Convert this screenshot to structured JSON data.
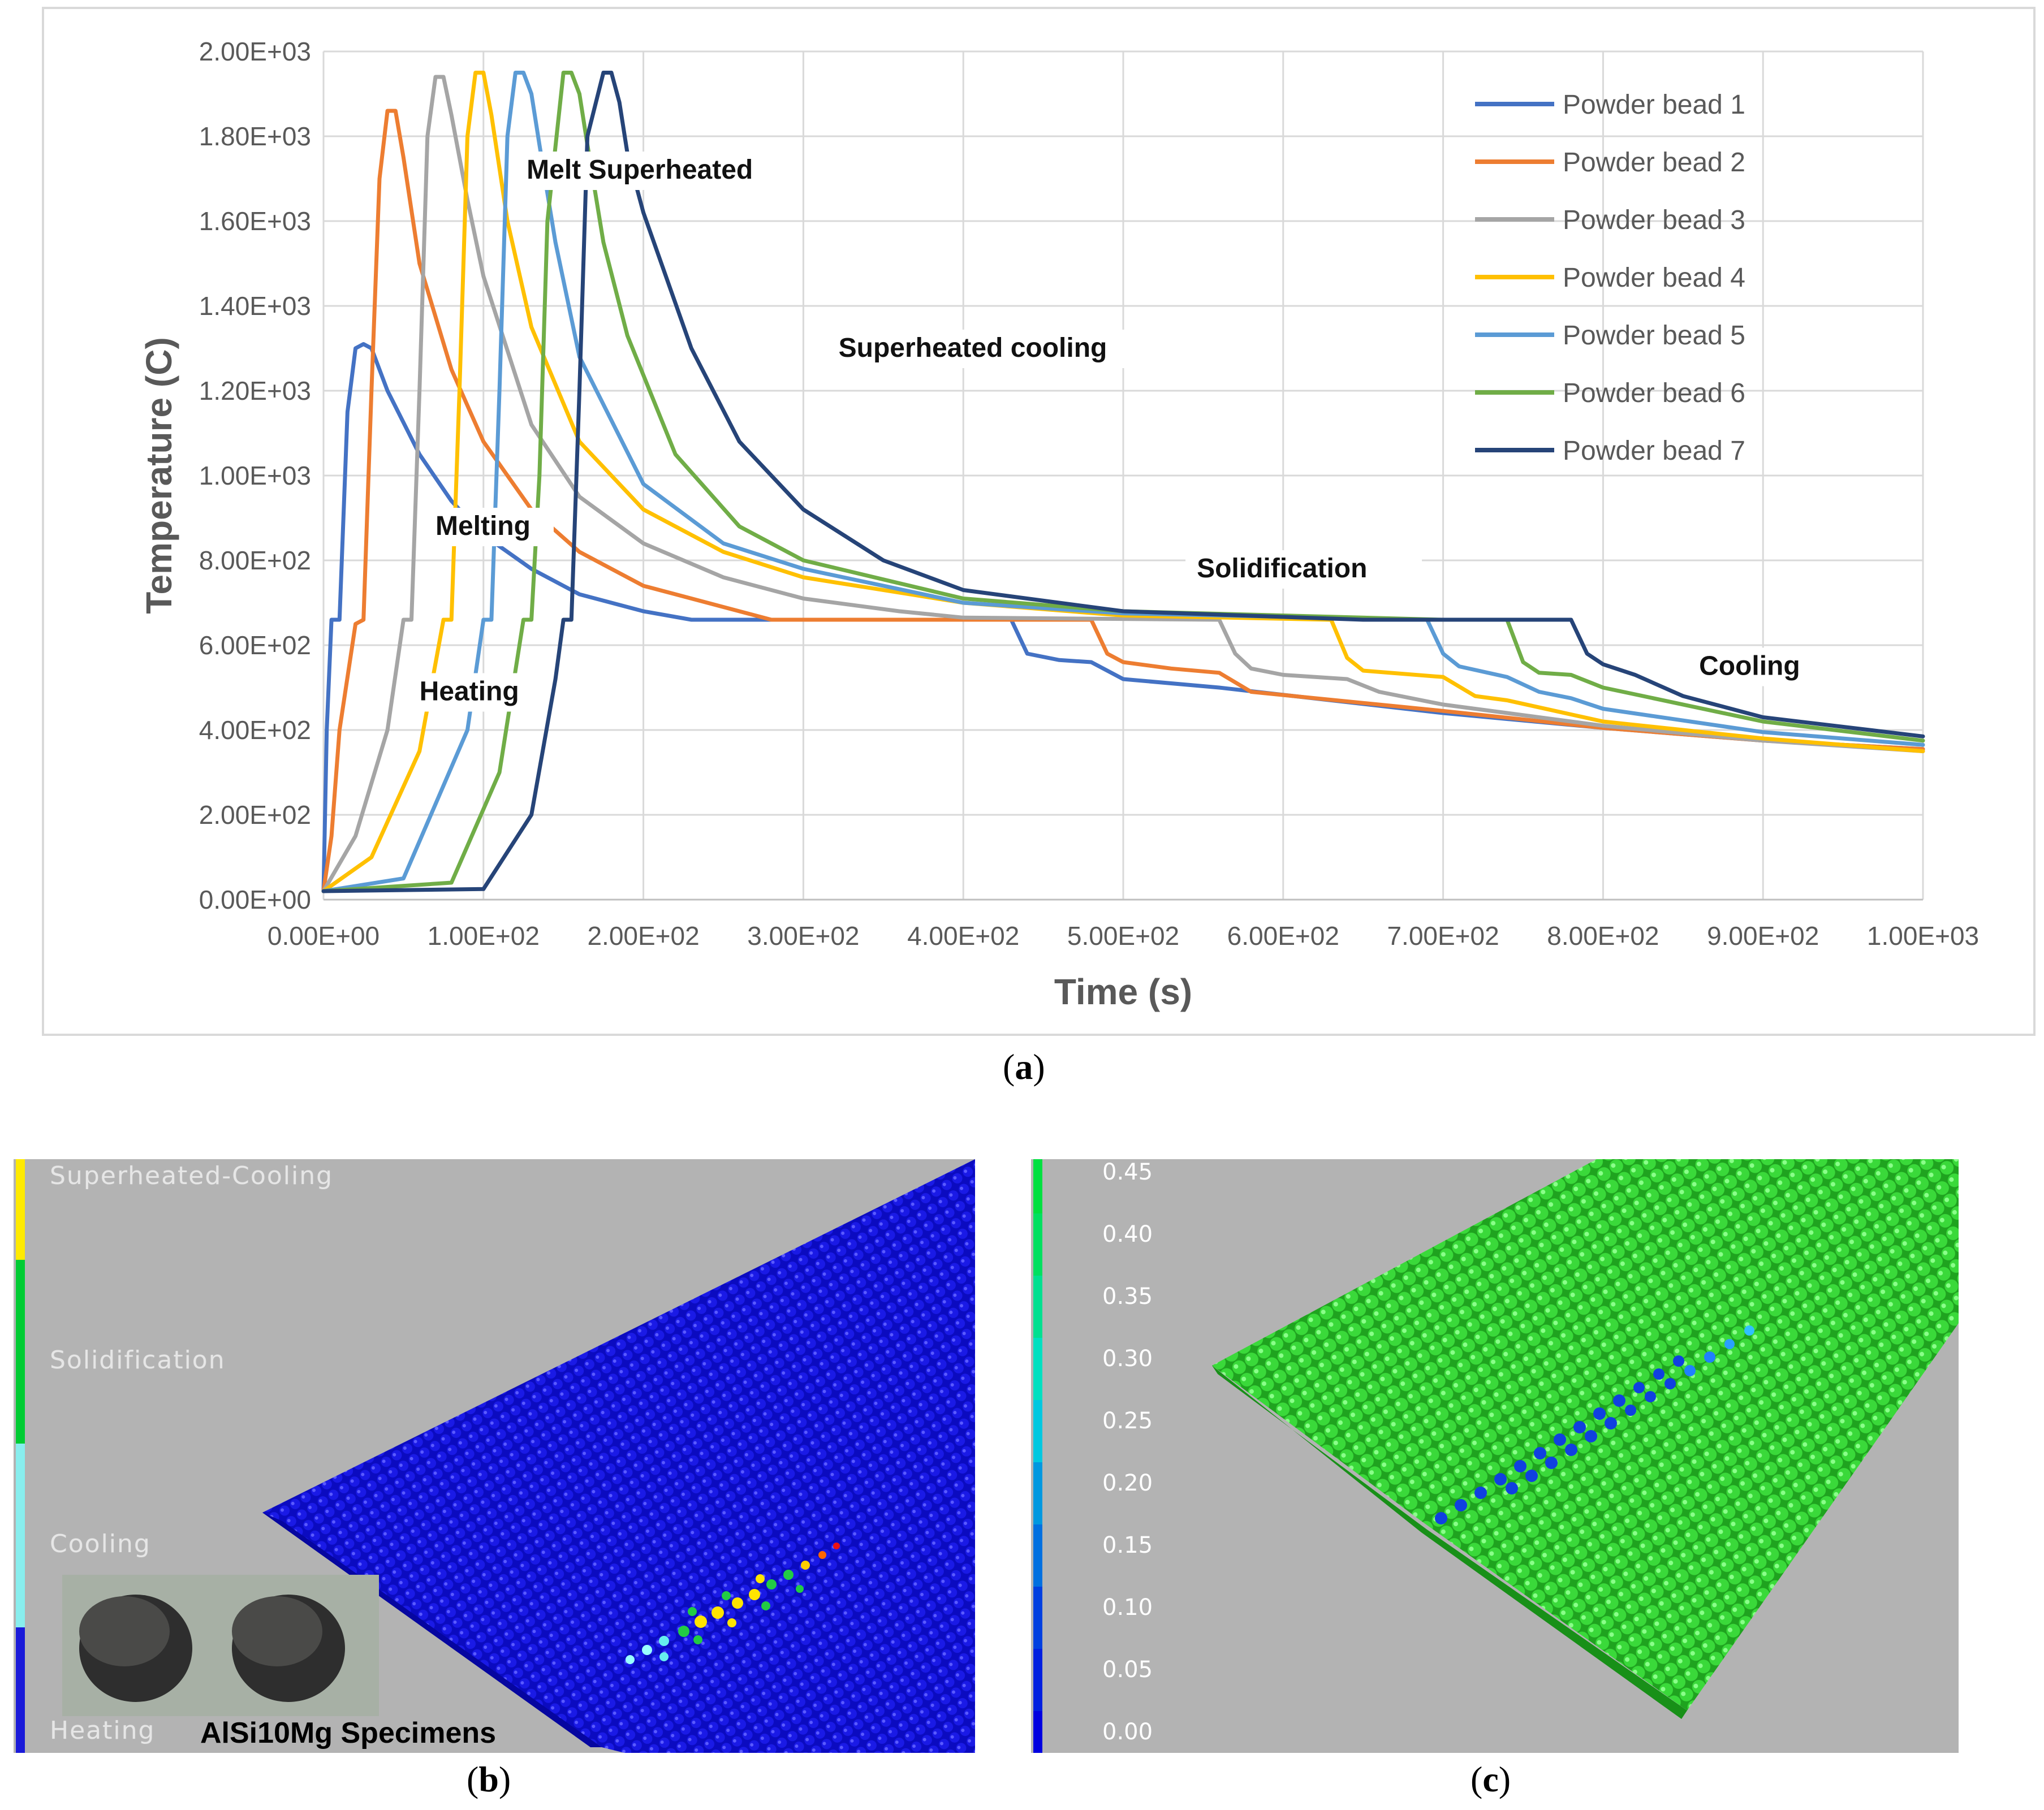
{
  "chart_data": {
    "type": "line",
    "xlabel": "Time (s)",
    "ylabel": "Temperature (C)",
    "xlim": [
      0,
      1000
    ],
    "ylim": [
      0,
      2000
    ],
    "xticks": [
      0,
      100,
      200,
      300,
      400,
      500,
      600,
      700,
      800,
      900,
      1000
    ],
    "yticks": [
      0,
      200,
      400,
      600,
      800,
      1000,
      1200,
      1400,
      1600,
      1800,
      2000
    ],
    "xtick_labels": [
      "0.00E+00",
      "1.00E+02",
      "2.00E+02",
      "3.00E+02",
      "4.00E+02",
      "5.00E+02",
      "6.00E+02",
      "7.00E+02",
      "8.00E+02",
      "9.00E+02",
      "1.00E+03"
    ],
    "ytick_labels": [
      "0.00E+00",
      "2.00E+02",
      "4.00E+02",
      "6.00E+02",
      "8.00E+02",
      "1.00E+03",
      "1.20E+03",
      "1.40E+03",
      "1.60E+03",
      "1.80E+03",
      "2.00E+03"
    ],
    "grid": true,
    "legend_position": "top-right",
    "series": [
      {
        "name": "Powder bead 1",
        "color": "#4472c4",
        "x": [
          0,
          2,
          5,
          10,
          15,
          20,
          25,
          30,
          40,
          60,
          80,
          100,
          130,
          160,
          200,
          230,
          300,
          400,
          430,
          440,
          460,
          480,
          500,
          560,
          700,
          800,
          900,
          1000
        ],
        "y": [
          20,
          400,
          660,
          660,
          1150,
          1300,
          1310,
          1300,
          1200,
          1050,
          940,
          860,
          780,
          720,
          680,
          660,
          660,
          660,
          660,
          580,
          565,
          560,
          520,
          500,
          440,
          405,
          375,
          355
        ]
      },
      {
        "name": "Powder bead 2",
        "color": "#ed7d31",
        "x": [
          0,
          5,
          10,
          20,
          25,
          30,
          35,
          40,
          45,
          50,
          60,
          80,
          100,
          130,
          160,
          200,
          250,
          280,
          300,
          400,
          480,
          490,
          500,
          530,
          560,
          580,
          700,
          800,
          900,
          1000
        ],
        "y": [
          20,
          150,
          400,
          650,
          660,
          1200,
          1700,
          1860,
          1860,
          1750,
          1500,
          1250,
          1080,
          920,
          820,
          740,
          690,
          660,
          660,
          660,
          660,
          580,
          560,
          545,
          535,
          490,
          445,
          405,
          375,
          355
        ]
      },
      {
        "name": "Powder bead 3",
        "color": "#a5a5a5",
        "x": [
          0,
          20,
          40,
          50,
          55,
          60,
          65,
          70,
          75,
          80,
          90,
          100,
          130,
          160,
          200,
          250,
          300,
          360,
          400,
          560,
          570,
          580,
          600,
          640,
          660,
          700,
          800,
          900,
          1000
        ],
        "y": [
          20,
          150,
          400,
          660,
          660,
          1200,
          1800,
          1940,
          1940,
          1850,
          1650,
          1470,
          1120,
          950,
          840,
          760,
          710,
          680,
          665,
          660,
          580,
          545,
          530,
          520,
          490,
          460,
          410,
          375,
          350
        ]
      },
      {
        "name": "Powder bead 4",
        "color": "#ffc000",
        "x": [
          0,
          30,
          60,
          75,
          80,
          85,
          90,
          95,
          100,
          105,
          115,
          130,
          160,
          200,
          250,
          300,
          400,
          500,
          630,
          640,
          650,
          700,
          720,
          740,
          800,
          900,
          1000
        ],
        "y": [
          20,
          100,
          350,
          660,
          660,
          1200,
          1800,
          1950,
          1950,
          1850,
          1600,
          1350,
          1080,
          920,
          820,
          760,
          700,
          670,
          660,
          570,
          540,
          525,
          480,
          470,
          420,
          380,
          350
        ]
      },
      {
        "name": "Powder bead 5",
        "color": "#5b9bd5",
        "x": [
          0,
          50,
          90,
          100,
          105,
          110,
          115,
          120,
          125,
          130,
          135,
          145,
          160,
          200,
          250,
          300,
          400,
          500,
          690,
          700,
          710,
          740,
          760,
          780,
          800,
          900,
          1000
        ],
        "y": [
          20,
          50,
          400,
          660,
          660,
          1200,
          1800,
          1950,
          1950,
          1900,
          1780,
          1550,
          1280,
          980,
          840,
          780,
          700,
          675,
          660,
          580,
          550,
          525,
          490,
          475,
          450,
          395,
          365
        ]
      },
      {
        "name": "Powder bead 6",
        "color": "#70ad47",
        "x": [
          0,
          80,
          110,
          125,
          130,
          135,
          140,
          150,
          155,
          160,
          165,
          175,
          190,
          220,
          260,
          300,
          400,
          500,
          700,
          740,
          750,
          760,
          780,
          790,
          800,
          900,
          1000
        ],
        "y": [
          20,
          40,
          300,
          660,
          660,
          1000,
          1600,
          1950,
          1950,
          1900,
          1780,
          1550,
          1330,
          1050,
          880,
          800,
          710,
          680,
          660,
          660,
          560,
          535,
          530,
          515,
          500,
          420,
          375
        ]
      },
      {
        "name": "Powder bead 7",
        "color": "#264478",
        "x": [
          0,
          100,
          130,
          145,
          150,
          155,
          160,
          165,
          175,
          180,
          185,
          190,
          200,
          230,
          260,
          300,
          350,
          400,
          500,
          650,
          780,
          790,
          800,
          820,
          850,
          900,
          1000
        ],
        "y": [
          20,
          25,
          200,
          520,
          660,
          660,
          1200,
          1800,
          1950,
          1950,
          1880,
          1760,
          1620,
          1300,
          1080,
          920,
          800,
          730,
          680,
          660,
          660,
          580,
          555,
          530,
          480,
          430,
          385
        ]
      }
    ],
    "annotations": [
      {
        "text": "Melt Superheated",
        "x": 127,
        "y": 1700
      },
      {
        "text": "Superheated cooling",
        "x": 322,
        "y": 1280
      },
      {
        "text": "Melting",
        "x": 70,
        "y": 860
      },
      {
        "text": "Solidification",
        "x": 546,
        "y": 760
      },
      {
        "text": "Heating",
        "x": 60,
        "y": 470
      },
      {
        "text": "Cooling",
        "x": 860,
        "y": 530
      }
    ]
  },
  "captions": {
    "a": "a",
    "b": "b",
    "c": "c"
  },
  "panel_b": {
    "legend_labels": [
      "Superheated-Cooling",
      "Solidification",
      "Cooling",
      "Heating"
    ],
    "legend_colors": [
      "#ffea00",
      "#00cc33",
      "#88eeee",
      "#1a1ad9"
    ],
    "specimen_label": "AlSi10Mg Specimens",
    "bed_color": "#0d0dcc"
  },
  "panel_c": {
    "scale_ticks": [
      "0.45",
      "0.40",
      "0.35",
      "0.30",
      "0.25",
      "0.20",
      "0.15",
      "0.10",
      "0.05",
      "0.00"
    ],
    "scale_colors": [
      "#00e040",
      "#00e060",
      "#00e090",
      "#00e0c0",
      "#00c8e0",
      "#0098e0",
      "#0070e0",
      "#0040e0",
      "#0020e0",
      "#0000e0"
    ],
    "bed_color": "#33dd33"
  }
}
